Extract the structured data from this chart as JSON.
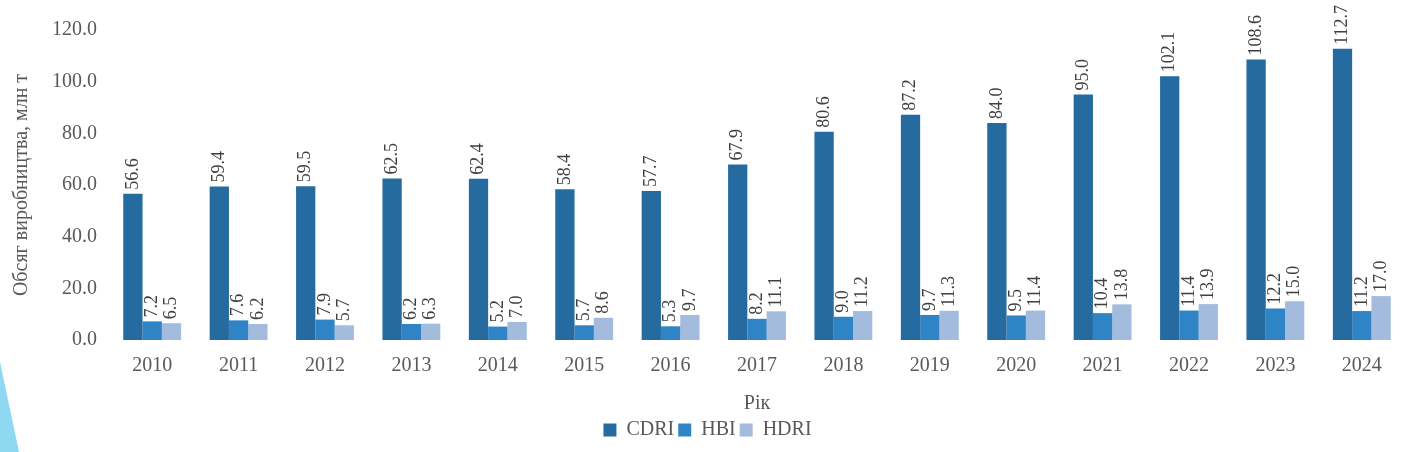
{
  "chart_data": {
    "type": "bar",
    "xlabel": "Рік",
    "ylabel": "Обсяг виробництва, млн т",
    "categories": [
      "2010",
      "2011",
      "2012",
      "2013",
      "2014",
      "2015",
      "2016",
      "2017",
      "2018",
      "2019",
      "2020",
      "2021",
      "2022",
      "2023",
      "2024"
    ],
    "series": [
      {
        "name": "CDRI",
        "color": "#256ba0",
        "values": [
          56.6,
          59.4,
          59.5,
          62.5,
          62.4,
          58.4,
          57.7,
          67.9,
          80.6,
          87.2,
          84.0,
          95.0,
          102.1,
          108.6,
          112.7
        ],
        "value_labels": [
          "56.6",
          "59.4",
          "59.5",
          "62.5",
          "62.4",
          "58.4",
          "57.7",
          "67.9",
          "80.6",
          "87.2",
          "84.0",
          "95.0",
          "102.1",
          "108.6",
          "112.7"
        ]
      },
      {
        "name": "HBI",
        "color": "#2e84c4",
        "values": [
          7.2,
          7.6,
          7.9,
          6.2,
          5.2,
          5.7,
          5.3,
          8.2,
          9.0,
          9.7,
          9.5,
          10.4,
          11.4,
          12.2,
          11.2
        ],
        "value_labels": [
          "7.2",
          "7.6",
          "7.9",
          "6.2",
          "5.2",
          "5.7",
          "5.3",
          "8.2",
          "9.0",
          "9.7",
          "9.5",
          "10.4",
          "11.4",
          "12.2",
          "11.2"
        ]
      },
      {
        "name": "HDRI",
        "color": "#a3bbdc",
        "values": [
          6.5,
          6.2,
          5.7,
          6.3,
          7.0,
          8.6,
          9.7,
          11.1,
          11.2,
          11.3,
          11.4,
          13.8,
          13.9,
          15.0,
          17.0
        ],
        "value_labels": [
          "6.5",
          "6.2",
          "5.7",
          "6.3",
          "7.0",
          "8.6",
          "9.7",
          "11.1",
          "11.2",
          "11.3",
          "11.4",
          "13.8",
          "13.9",
          "15.0",
          "17.0"
        ]
      }
    ],
    "ylim": [
      0,
      120
    ],
    "yticks": [
      {
        "value": 0,
        "label": "0.0"
      },
      {
        "value": 20,
        "label": "20.0"
      },
      {
        "value": 40,
        "label": "40.0"
      },
      {
        "value": 60,
        "label": "60.0"
      },
      {
        "value": 80,
        "label": "80.0"
      },
      {
        "value": 100,
        "label": "100.0"
      },
      {
        "value": 120,
        "label": "120.0"
      }
    ],
    "grid": false,
    "legend": "bottom"
  }
}
